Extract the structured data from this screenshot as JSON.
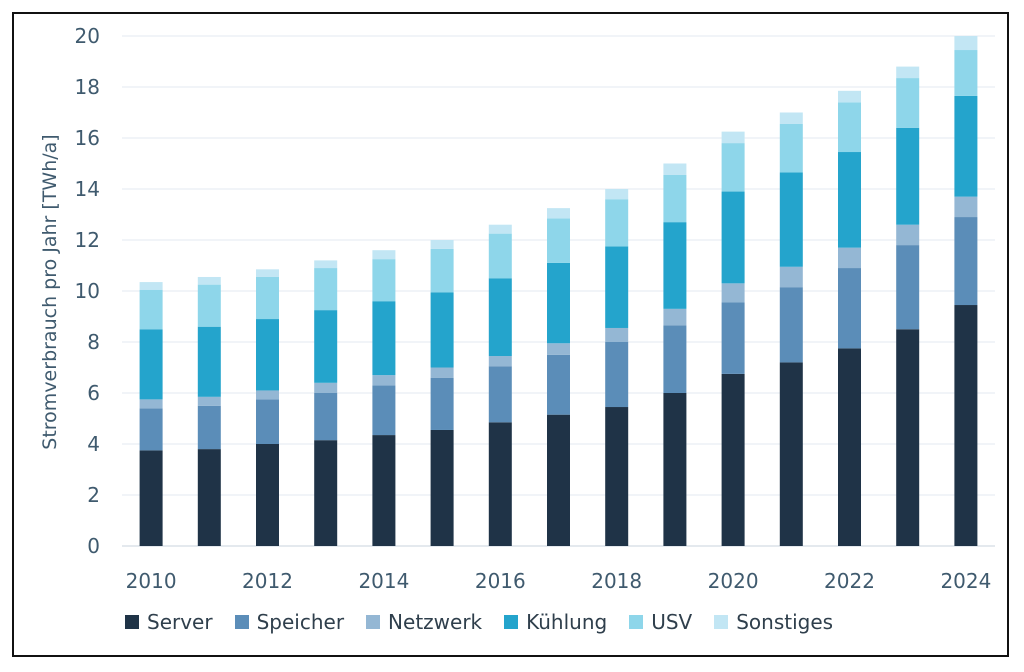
{
  "chart_data": {
    "type": "bar",
    "stacked": true,
    "title": "",
    "xlabel": "",
    "ylabel": "Stromverbrauch pro Jahr [TWh/a]",
    "ylim": [
      0,
      20
    ],
    "yticks": [
      "0",
      "2",
      "4",
      "6",
      "8",
      "10",
      "12",
      "14",
      "16",
      "18",
      "20"
    ],
    "categories": [
      "2010",
      "2011",
      "2012",
      "2013",
      "2014",
      "2015",
      "2016",
      "2017",
      "2018",
      "2019",
      "2020",
      "2021",
      "2022",
      "2023",
      "2024"
    ],
    "xtick_labels": [
      "2010",
      "2012",
      "2014",
      "2016",
      "2018",
      "2020",
      "2022",
      "2024"
    ],
    "grid": true,
    "legend_position": "bottom",
    "series": [
      {
        "name": "Server",
        "color": "#1f3347",
        "values": [
          3.75,
          3.8,
          4.0,
          4.15,
          4.35,
          4.55,
          4.85,
          5.15,
          5.45,
          6.0,
          6.75,
          7.2,
          7.75,
          8.5,
          9.45
        ]
      },
      {
        "name": "Speicher",
        "color": "#5b8db8",
        "values": [
          1.65,
          1.7,
          1.75,
          1.85,
          1.95,
          2.05,
          2.2,
          2.35,
          2.55,
          2.65,
          2.8,
          2.95,
          3.15,
          3.3,
          3.45
        ]
      },
      {
        "name": "Netzwerk",
        "color": "#94b7d4",
        "values": [
          0.35,
          0.35,
          0.35,
          0.4,
          0.4,
          0.4,
          0.4,
          0.45,
          0.55,
          0.65,
          0.75,
          0.8,
          0.8,
          0.8,
          0.8
        ]
      },
      {
        "name": "Kühlung",
        "color": "#24a4cc",
        "values": [
          2.75,
          2.75,
          2.8,
          2.85,
          2.9,
          2.95,
          3.05,
          3.15,
          3.2,
          3.4,
          3.6,
          3.7,
          3.75,
          3.8,
          3.95
        ]
      },
      {
        "name": "USV",
        "color": "#8ed6ea",
        "values": [
          1.55,
          1.65,
          1.65,
          1.65,
          1.65,
          1.7,
          1.75,
          1.75,
          1.85,
          1.85,
          1.9,
          1.9,
          1.95,
          1.95,
          1.8
        ]
      },
      {
        "name": "Sonstiges",
        "color": "#c2e6f4",
        "values": [
          0.3,
          0.3,
          0.3,
          0.3,
          0.35,
          0.35,
          0.35,
          0.4,
          0.4,
          0.45,
          0.45,
          0.45,
          0.45,
          0.45,
          0.55
        ]
      }
    ]
  }
}
